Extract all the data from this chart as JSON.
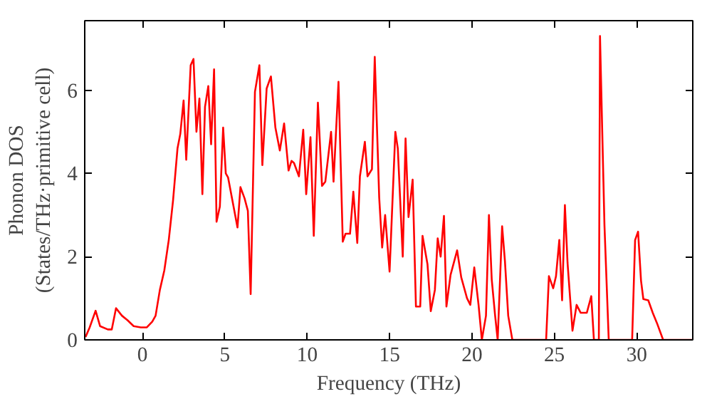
{
  "chart_data": {
    "type": "line",
    "xlabel": "Frequency (THz)",
    "ylabel": "Phonon DOS\n(States/THz·primitive cell)",
    "xlim": [
      -3.5,
      33.4
    ],
    "ylim": [
      0,
      7.67
    ],
    "xticks": [
      0,
      5,
      10,
      15,
      20,
      25,
      30
    ],
    "yticks": [
      0,
      2,
      4,
      6
    ],
    "grid": false,
    "marker": "none",
    "line_style": "solid",
    "series": [
      {
        "color": "#ff0000",
        "x": [
          -3.45,
          -3.2,
          -2.84,
          -2.57,
          -2.1,
          -1.86,
          -1.6,
          -1.24,
          -0.9,
          -0.53,
          -0.1,
          0.27,
          0.6,
          0.8,
          1.06,
          1.33,
          1.6,
          1.86,
          2.13,
          2.3,
          2.5,
          2.66,
          2.93,
          3.1,
          3.28,
          3.46,
          3.64,
          3.8,
          4.0,
          4.17,
          4.35,
          4.5,
          4.7,
          4.9,
          5.06,
          5.2,
          5.5,
          5.77,
          5.95,
          6.2,
          6.4,
          6.57,
          6.83,
          7.1,
          7.28,
          7.54,
          7.8,
          8.07,
          8.34,
          8.6,
          8.87,
          9.05,
          9.2,
          9.5,
          9.76,
          9.94,
          10.2,
          10.4,
          10.65,
          10.9,
          11.1,
          11.45,
          11.6,
          11.9,
          12.16,
          12.33,
          12.6,
          12.8,
          13.04,
          13.2,
          13.5,
          13.66,
          13.93,
          14.1,
          14.37,
          14.55,
          14.73,
          15.0,
          15.35,
          15.5,
          15.8,
          15.97,
          16.15,
          16.4,
          16.6,
          16.86,
          17.0,
          17.3,
          17.5,
          17.75,
          17.92,
          18.1,
          18.3,
          18.45,
          18.7,
          19.1,
          19.35,
          19.7,
          19.9,
          20.14,
          20.4,
          20.6,
          20.85,
          21.03,
          21.2,
          21.4,
          21.56,
          21.83,
          22.0,
          22.2,
          22.45,
          24.5,
          24.67,
          24.93,
          25.1,
          25.3,
          25.47,
          25.64,
          25.8,
          26.1,
          26.35,
          26.6,
          26.97,
          27.24,
          27.4,
          27.7,
          27.77,
          28.04,
          28.3,
          29.72,
          29.9,
          30.08,
          30.26,
          30.4,
          30.7,
          30.97,
          31.23,
          31.6,
          33.4
        ],
        "values": [
          0.07,
          0.3,
          0.7,
          0.33,
          0.25,
          0.25,
          0.76,
          0.58,
          0.47,
          0.33,
          0.3,
          0.3,
          0.44,
          0.58,
          1.2,
          1.67,
          2.4,
          3.35,
          4.6,
          4.95,
          5.75,
          4.33,
          6.6,
          6.75,
          5.0,
          5.8,
          3.5,
          5.6,
          6.1,
          4.7,
          6.5,
          2.84,
          3.2,
          5.1,
          4.0,
          3.9,
          3.27,
          2.7,
          3.67,
          3.4,
          3.1,
          1.1,
          5.96,
          6.6,
          4.2,
          6.04,
          6.33,
          5.1,
          4.55,
          5.2,
          4.07,
          4.3,
          4.25,
          3.93,
          5.05,
          3.5,
          4.87,
          2.5,
          5.7,
          3.7,
          3.8,
          5.0,
          3.8,
          6.2,
          2.36,
          2.55,
          2.55,
          3.56,
          2.33,
          3.93,
          4.76,
          3.93,
          4.1,
          6.8,
          3.42,
          2.22,
          3.0,
          1.64,
          5.0,
          4.6,
          2.0,
          4.84,
          2.95,
          3.85,
          0.8,
          0.8,
          2.5,
          1.82,
          0.69,
          1.2,
          2.44,
          2.0,
          2.98,
          0.8,
          1.56,
          2.15,
          1.5,
          1.0,
          0.84,
          1.74,
          0.84,
          0,
          0.58,
          3.0,
          1.45,
          0.6,
          0,
          2.73,
          1.9,
          0.58,
          0,
          0,
          1.53,
          1.24,
          1.53,
          2.4,
          0.95,
          3.24,
          1.85,
          0.22,
          0.84,
          0.65,
          0.65,
          1.05,
          0,
          0,
          7.3,
          2.76,
          0,
          0,
          2.4,
          2.6,
          1.42,
          0.98,
          0.95,
          0.65,
          0.4,
          0,
          0
        ]
      }
    ]
  }
}
